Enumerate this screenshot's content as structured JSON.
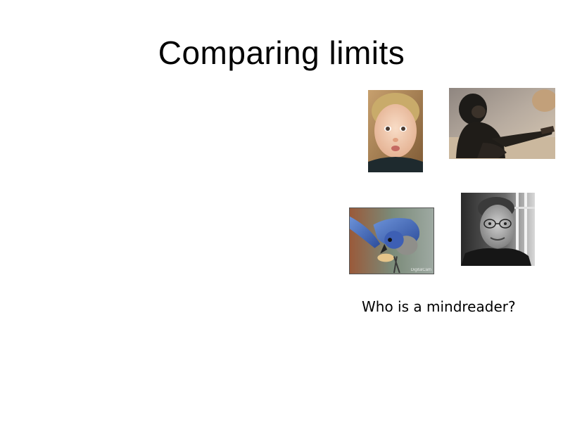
{
  "slide": {
    "title": "Comparing limits",
    "question": "Who is a mindreader?",
    "photo_credit": "DigitalCam"
  },
  "images": [
    {
      "name": "baby-photo",
      "depicts": "toddler"
    },
    {
      "name": "chimpanzee-photo",
      "depicts": "chimpanzee"
    },
    {
      "name": "scrub-jay-photo",
      "depicts": "blue jay with peanut"
    },
    {
      "name": "man-photo",
      "depicts": "man with glasses"
    }
  ]
}
